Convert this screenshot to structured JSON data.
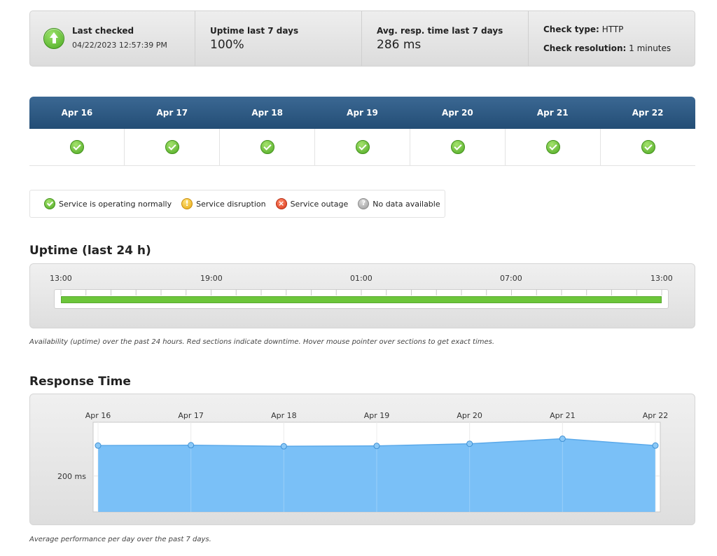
{
  "summary": {
    "last_checked_label": "Last checked",
    "last_checked_value": "04/22/2023 12:57:39 PM",
    "uptime_label": "Uptime last 7 days",
    "uptime_value": "100%",
    "avg_resp_label": "Avg. resp. time last 7 days",
    "avg_resp_value": "286 ms",
    "check_type_label": "Check type:",
    "check_type_value": "HTTP",
    "check_resolution_label": "Check resolution:",
    "check_resolution_value": "1 minutes"
  },
  "days": [
    {
      "label": "Apr 16",
      "status": "ok"
    },
    {
      "label": "Apr 17",
      "status": "ok"
    },
    {
      "label": "Apr 18",
      "status": "ok"
    },
    {
      "label": "Apr 19",
      "status": "ok"
    },
    {
      "label": "Apr 20",
      "status": "ok"
    },
    {
      "label": "Apr 21",
      "status": "ok"
    },
    {
      "label": "Apr 22",
      "status": "ok"
    }
  ],
  "legend": {
    "normal": "Service is operating normally",
    "disruption": "Service disruption",
    "outage": "Service outage",
    "nodata": "No data available"
  },
  "uptime_section": {
    "title": "Uptime (last 24 h)",
    "ticks": [
      "13:00",
      "19:00",
      "01:00",
      "07:00",
      "13:00"
    ],
    "uptime_fraction": 1.0,
    "bar_color": "#6cc63a",
    "caption": "Availability (uptime) over the past 24 hours. Red sections indicate downtime. Hover mouse pointer over sections to get exact times."
  },
  "response_section": {
    "title": "Response Time",
    "caption": "Average performance per day over the past 7 days."
  },
  "chart_data": {
    "type": "area",
    "categories": [
      "Apr 16",
      "Apr 17",
      "Apr 18",
      "Apr 19",
      "Apr 20",
      "Apr 21",
      "Apr 22"
    ],
    "values": [
      285,
      286,
      283,
      284,
      290,
      304,
      285
    ],
    "ytick_values": [
      200
    ],
    "ytick_labels": [
      "200 ms"
    ],
    "ylim": [
      100,
      350
    ],
    "grid": true,
    "fill_color": "#73bdf7",
    "line_color": "#5aa9ea"
  }
}
